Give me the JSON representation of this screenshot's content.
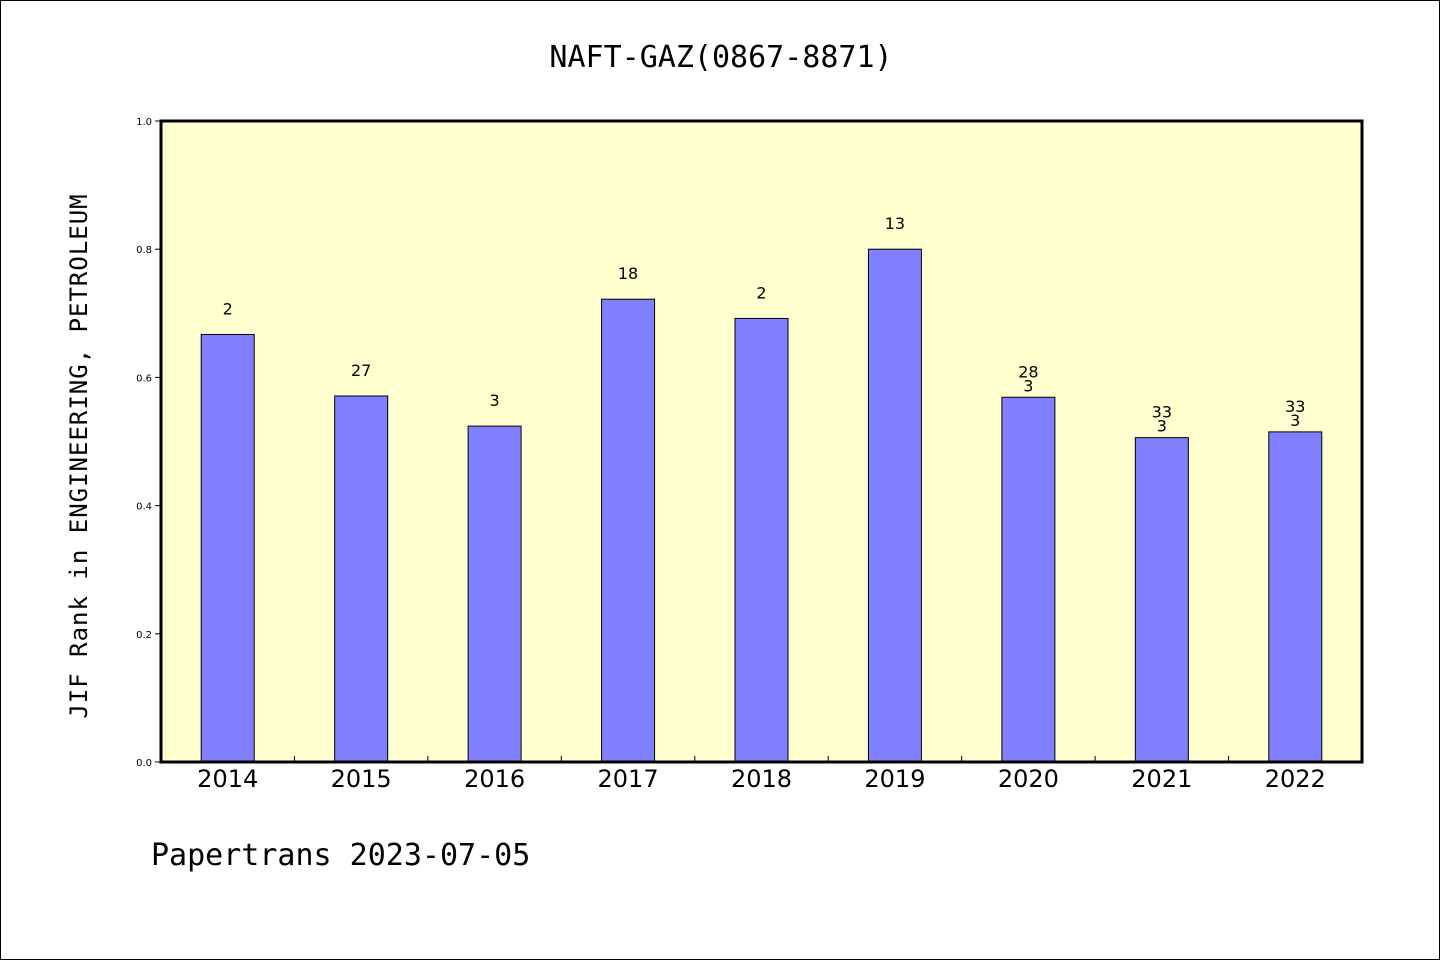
{
  "chart_data": {
    "type": "bar",
    "title": "NAFT-GAZ(0867-8871)",
    "xlabel": "",
    "ylabel": "JIF Rank in ENGINEERING, PETROLEUM",
    "ylim": [
      0,
      1
    ],
    "yticks": [
      "0.0",
      "0.2",
      "0.4",
      "0.6",
      "0.8",
      "1.0"
    ],
    "categories": [
      "2014",
      "2015",
      "2016",
      "2017",
      "2018",
      "2019",
      "2020",
      "2021",
      "2022"
    ],
    "values": [
      0.667,
      0.571,
      0.524,
      0.722,
      0.692,
      0.8,
      0.569,
      0.506,
      0.515
    ],
    "labels": [
      [
        "2"
      ],
      [
        "27"
      ],
      [
        "3"
      ],
      [
        "18"
      ],
      [
        "2"
      ],
      [
        "13"
      ],
      [
        "28",
        "3"
      ],
      [
        "33",
        "3"
      ],
      [
        "33",
        "3"
      ]
    ],
    "plot_background": "#FFFFD0",
    "bar_color": "#8080FF",
    "grid": false,
    "legend": "none"
  },
  "footer": "Papertrans 2023-07-05"
}
